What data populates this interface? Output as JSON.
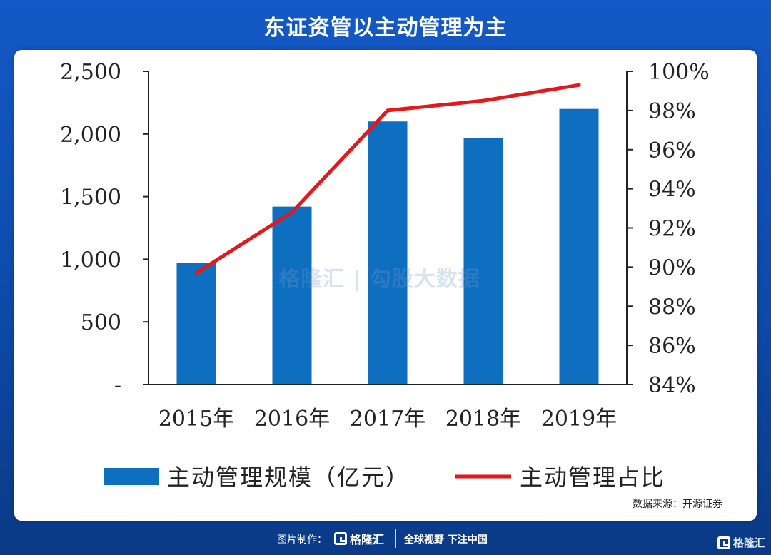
{
  "header": {
    "title": "东证资管以主动管理为主"
  },
  "watermark": {
    "text": "格隆汇 | 勾股大数据"
  },
  "source": "数据来源：开源证券",
  "footer": {
    "label": "图片制作：",
    "logo_text": "格隆汇",
    "slogan": "全球视野 下注中国",
    "corner_text": "格隆汇"
  },
  "colors": {
    "bar": "#0e6fc1",
    "line": "#e6161b",
    "background_top": "#1459c6",
    "background_bottom": "#0a3a86"
  },
  "chart_data": {
    "type": "bar",
    "categories": [
      "2015年",
      "2016年",
      "2017年",
      "2018年",
      "2019年"
    ],
    "series": [
      {
        "name": "主动管理规模（亿元）",
        "type": "bar",
        "axis": "left",
        "values": [
          970,
          1420,
          2100,
          1970,
          2200
        ]
      },
      {
        "name": "主动管理占比",
        "type": "line",
        "axis": "right",
        "values": [
          89.7,
          92.8,
          98.0,
          98.5,
          99.3
        ]
      }
    ],
    "y_left": {
      "range": [
        0,
        2500
      ],
      "ticks": [
        0,
        500,
        1000,
        1500,
        2000,
        2500
      ],
      "tick_labels": [
        "-",
        "500",
        "1,000",
        "1,500",
        "2,000",
        "2,500"
      ]
    },
    "y_right": {
      "range": [
        84,
        100
      ],
      "ticks": [
        84,
        86,
        88,
        90,
        92,
        94,
        96,
        98,
        100
      ],
      "tick_labels": [
        "84%",
        "86%",
        "88%",
        "90%",
        "92%",
        "94%",
        "96%",
        "98%",
        "100%"
      ]
    },
    "grid": false,
    "legend_position": "bottom"
  }
}
